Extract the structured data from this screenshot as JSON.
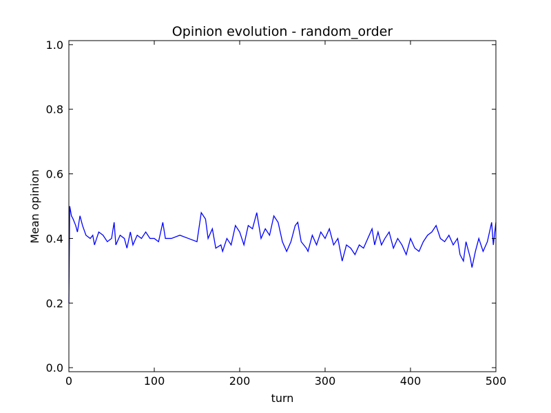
{
  "chart_data": {
    "type": "line",
    "title": "Opinion evolution - random_order",
    "xlabel": "turn",
    "ylabel": "Mean opinion",
    "x": [
      0,
      1,
      3,
      5,
      8,
      10,
      13,
      16,
      20,
      25,
      28,
      30,
      35,
      40,
      45,
      50,
      53,
      55,
      60,
      65,
      68,
      72,
      75,
      80,
      85,
      90,
      95,
      100,
      105,
      110,
      113,
      120,
      130,
      140,
      150,
      155,
      160,
      163,
      168,
      172,
      178,
      180,
      185,
      190,
      195,
      200,
      205,
      210,
      215,
      220,
      225,
      230,
      235,
      240,
      245,
      250,
      255,
      260,
      265,
      268,
      272,
      278,
      280,
      285,
      290,
      295,
      300,
      305,
      310,
      315,
      320,
      325,
      330,
      335,
      340,
      345,
      350,
      355,
      358,
      362,
      366,
      370,
      375,
      380,
      385,
      390,
      395,
      400,
      405,
      410,
      415,
      420,
      425,
      430,
      435,
      440,
      445,
      450,
      455,
      458,
      462,
      465,
      470,
      472,
      476,
      480,
      485,
      490,
      495,
      497,
      500
    ],
    "series": [
      {
        "color": "#0000ff",
        "values": [
          0.2,
          0.5,
          0.47,
          0.46,
          0.44,
          0.42,
          0.47,
          0.44,
          0.41,
          0.4,
          0.41,
          0.38,
          0.42,
          0.41,
          0.39,
          0.4,
          0.45,
          0.38,
          0.41,
          0.4,
          0.37,
          0.42,
          0.38,
          0.41,
          0.4,
          0.42,
          0.4,
          0.4,
          0.39,
          0.45,
          0.4,
          0.4,
          0.41,
          0.4,
          0.39,
          0.48,
          0.46,
          0.4,
          0.43,
          0.37,
          0.38,
          0.36,
          0.4,
          0.38,
          0.44,
          0.42,
          0.38,
          0.44,
          0.43,
          0.48,
          0.4,
          0.43,
          0.41,
          0.47,
          0.45,
          0.39,
          0.36,
          0.39,
          0.44,
          0.45,
          0.39,
          0.37,
          0.36,
          0.41,
          0.38,
          0.42,
          0.4,
          0.43,
          0.38,
          0.4,
          0.33,
          0.38,
          0.37,
          0.35,
          0.38,
          0.37,
          0.4,
          0.43,
          0.38,
          0.42,
          0.38,
          0.4,
          0.42,
          0.37,
          0.4,
          0.38,
          0.35,
          0.4,
          0.37,
          0.36,
          0.39,
          0.41,
          0.42,
          0.44,
          0.4,
          0.39,
          0.41,
          0.38,
          0.4,
          0.35,
          0.33,
          0.39,
          0.34,
          0.31,
          0.36,
          0.4,
          0.36,
          0.39,
          0.45,
          0.38,
          0.45
        ]
      }
    ],
    "xlim": [
      0,
      500
    ],
    "xticks": [
      0,
      100,
      200,
      300,
      400,
      500
    ],
    "ylim": [
      -0.0125,
      1.0125
    ],
    "yticks": [
      {
        "value": 0,
        "label": "0.0"
      },
      {
        "value": 0.2,
        "label": "0.2"
      },
      {
        "value": 0.4,
        "label": "0.4"
      },
      {
        "value": 0.6,
        "label": "0.6"
      },
      {
        "value": 0.8,
        "label": "0.8"
      },
      {
        "value": 1,
        "label": "1.0"
      }
    ]
  }
}
